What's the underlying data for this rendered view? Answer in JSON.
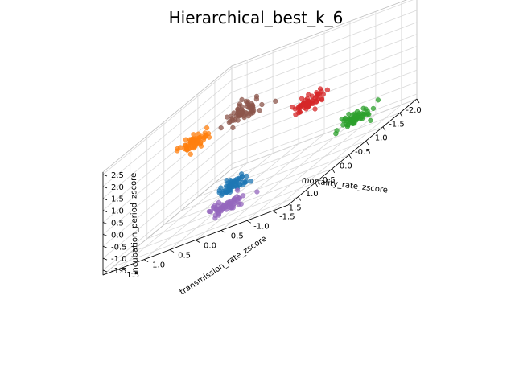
{
  "chart_data": {
    "type": "scatter",
    "projection": "3d",
    "title": "Hierarchical_best_k_6",
    "xlabel": "mortality_rate_zscore",
    "ylabel": "transmission_rate_zscore",
    "zlabel": "incubation_period_zscore",
    "xlim": [
      -2.0,
      1.8
    ],
    "ylim": [
      -1.8,
      1.8
    ],
    "zlim": [
      -1.7,
      2.6
    ],
    "xticks": [
      "-2.0",
      "-1.5",
      "-1.0",
      "-0.5",
      "0.0",
      "0.5",
      "1.0",
      "1.5"
    ],
    "yticks": [
      "-1.5",
      "-1.0",
      "-0.5",
      "0.0",
      "0.5",
      "1.0",
      "1.5"
    ],
    "zticks": [
      "-1.5",
      "-1.0",
      "-0.5",
      "0.0",
      "0.5",
      "1.0",
      "1.5",
      "2.0",
      "2.5"
    ],
    "grid": true,
    "legend": "none",
    "points_per_cluster": 60,
    "clusters": [
      {
        "center": [
          0.6,
          0.05,
          -0.75
        ],
        "spread": 0.12,
        "color": "#1f77b4"
      },
      {
        "center": [
          0.1,
          1.15,
          1.35
        ],
        "spread": 0.13,
        "color": "#ff7f0e"
      },
      {
        "center": [
          -0.55,
          -1.55,
          -0.65
        ],
        "spread": 0.12,
        "color": "#2ca02c"
      },
      {
        "center": [
          -1.6,
          0.05,
          0.1
        ],
        "spread": 0.13,
        "color": "#d62728"
      },
      {
        "center": [
          1.45,
          -0.4,
          -0.95
        ],
        "spread": 0.14,
        "color": "#9467bd"
      },
      {
        "center": [
          -1.15,
          1.05,
          1.05
        ],
        "spread": 0.15,
        "color": "#8c564b"
      }
    ]
  }
}
